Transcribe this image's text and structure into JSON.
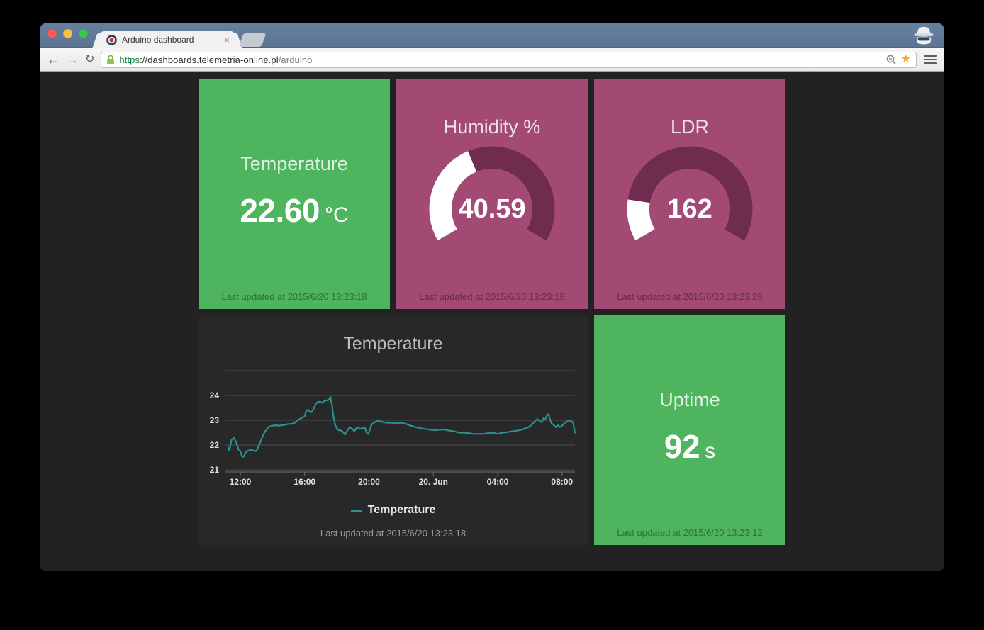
{
  "browser": {
    "tab_title": "Arduino dashboard",
    "tab_close": "×",
    "back": "←",
    "forward": "→",
    "reload": "↻",
    "url": {
      "scheme": "https",
      "host": "://dashboards.telemetria-online.pl",
      "path": "/arduino"
    }
  },
  "dashboard": {
    "colors": {
      "green": "#4eb45e",
      "purple": "#a24a74",
      "gauge_track": "#6f2c4e",
      "gauge_fill": "#ffffff",
      "chart_bg": "#282828"
    },
    "tiles": [
      {
        "type": "value",
        "title": "Temperature",
        "value": "22.60",
        "unit": "°C",
        "updated": "Last updated at 2015/6/20 13:23:18"
      },
      {
        "type": "gauge",
        "title": "Humidity %",
        "value": "40.59",
        "fraction": 0.4059,
        "updated": "Last updated at 2015/6/20 13:23:18"
      },
      {
        "type": "gauge",
        "title": "LDR",
        "value": "162",
        "fraction": 0.162,
        "updated": "Last updated at 2015/6/20 13:23:20"
      },
      {
        "type": "chart",
        "title": "Temperature",
        "updated": "Last updated at 2015/6/20 13:23:18"
      },
      {
        "type": "value",
        "title": "Uptime",
        "value": "92",
        "unit": "s",
        "updated": "Last updated at 2015/6/20 13:23:12"
      }
    ]
  },
  "chart_data": {
    "type": "line",
    "title": "Temperature",
    "legend": "Temperature",
    "legend_position": "bottom-center",
    "grid": true,
    "line_color": "#2b908f",
    "grid_color": "#4e4e52",
    "axis_color": "#707073",
    "label_color": "#e0e0e3",
    "ylim": [
      20.9,
      25
    ],
    "yticks": [
      21,
      22,
      23,
      24
    ],
    "ygrid": [
      21,
      22,
      23,
      24,
      25
    ],
    "xticks": [
      {
        "pos": 1,
        "label": "12:00"
      },
      {
        "pos": 5,
        "label": "16:00"
      },
      {
        "pos": 9,
        "label": "20:00"
      },
      {
        "pos": 13,
        "label": "20. Jun"
      },
      {
        "pos": 17,
        "label": "04:00"
      },
      {
        "pos": 21,
        "label": "08:00"
      }
    ],
    "x_unit": "time of day (pos = hours, 12:00 = 1)",
    "series": [
      {
        "name": "Temperature",
        "points": [
          [
            0.25,
            21.9
          ],
          [
            0.32,
            21.78
          ],
          [
            0.45,
            22.2
          ],
          [
            0.6,
            22.3
          ],
          [
            0.75,
            22.1
          ],
          [
            0.9,
            21.8
          ],
          [
            1.0,
            21.75
          ],
          [
            1.1,
            21.55
          ],
          [
            1.2,
            21.52
          ],
          [
            1.35,
            21.72
          ],
          [
            1.5,
            21.78
          ],
          [
            1.65,
            21.8
          ],
          [
            1.8,
            21.78
          ],
          [
            1.95,
            21.75
          ],
          [
            2.05,
            21.82
          ],
          [
            2.2,
            22.05
          ],
          [
            2.35,
            22.3
          ],
          [
            2.5,
            22.5
          ],
          [
            2.65,
            22.65
          ],
          [
            2.8,
            22.75
          ],
          [
            3.0,
            22.78
          ],
          [
            3.2,
            22.8
          ],
          [
            3.4,
            22.78
          ],
          [
            3.6,
            22.8
          ],
          [
            3.8,
            22.82
          ],
          [
            4.0,
            22.85
          ],
          [
            4.2,
            22.85
          ],
          [
            4.4,
            22.9
          ],
          [
            4.55,
            23.0
          ],
          [
            4.7,
            23.05
          ],
          [
            4.85,
            23.1
          ],
          [
            5.0,
            23.17
          ],
          [
            5.1,
            23.38
          ],
          [
            5.2,
            23.42
          ],
          [
            5.3,
            23.35
          ],
          [
            5.42,
            23.32
          ],
          [
            5.55,
            23.45
          ],
          [
            5.68,
            23.65
          ],
          [
            5.8,
            23.73
          ],
          [
            5.95,
            23.75
          ],
          [
            6.1,
            23.7
          ],
          [
            6.22,
            23.78
          ],
          [
            6.35,
            23.8
          ],
          [
            6.5,
            23.82
          ],
          [
            6.6,
            23.95
          ],
          [
            6.7,
            23.6
          ],
          [
            6.8,
            23.1
          ],
          [
            6.9,
            22.8
          ],
          [
            7.0,
            22.68
          ],
          [
            7.1,
            22.6
          ],
          [
            7.2,
            22.6
          ],
          [
            7.35,
            22.55
          ],
          [
            7.5,
            22.42
          ],
          [
            7.62,
            22.55
          ],
          [
            7.75,
            22.68
          ],
          [
            7.88,
            22.7
          ],
          [
            8.0,
            22.62
          ],
          [
            8.1,
            22.55
          ],
          [
            8.2,
            22.68
          ],
          [
            8.32,
            22.7
          ],
          [
            8.45,
            22.65
          ],
          [
            8.6,
            22.68
          ],
          [
            8.75,
            22.7
          ],
          [
            8.85,
            22.5
          ],
          [
            8.95,
            22.45
          ],
          [
            9.05,
            22.6
          ],
          [
            9.15,
            22.82
          ],
          [
            9.3,
            22.9
          ],
          [
            9.45,
            22.95
          ],
          [
            9.6,
            23.0
          ],
          [
            9.75,
            22.95
          ],
          [
            9.9,
            22.92
          ],
          [
            10.1,
            22.9
          ],
          [
            10.4,
            22.9
          ],
          [
            10.7,
            22.88
          ],
          [
            11.0,
            22.9
          ],
          [
            11.3,
            22.85
          ],
          [
            11.6,
            22.78
          ],
          [
            11.9,
            22.72
          ],
          [
            12.2,
            22.68
          ],
          [
            12.5,
            22.65
          ],
          [
            12.8,
            22.62
          ],
          [
            13.1,
            22.6
          ],
          [
            13.4,
            22.62
          ],
          [
            13.7,
            22.62
          ],
          [
            14.0,
            22.58
          ],
          [
            14.3,
            22.55
          ],
          [
            14.6,
            22.5
          ],
          [
            14.9,
            22.5
          ],
          [
            15.2,
            22.48
          ],
          [
            15.5,
            22.45
          ],
          [
            15.8,
            22.45
          ],
          [
            16.1,
            22.45
          ],
          [
            16.4,
            22.48
          ],
          [
            16.7,
            22.5
          ],
          [
            17.0,
            22.45
          ],
          [
            17.3,
            22.5
          ],
          [
            17.6,
            22.52
          ],
          [
            17.9,
            22.55
          ],
          [
            18.2,
            22.58
          ],
          [
            18.5,
            22.62
          ],
          [
            18.75,
            22.68
          ],
          [
            19.0,
            22.75
          ],
          [
            19.15,
            22.85
          ],
          [
            19.3,
            22.95
          ],
          [
            19.45,
            23.05
          ],
          [
            19.6,
            22.98
          ],
          [
            19.75,
            22.92
          ],
          [
            19.85,
            23.08
          ],
          [
            19.95,
            23.02
          ],
          [
            20.05,
            23.18
          ],
          [
            20.15,
            23.25
          ],
          [
            20.25,
            23.05
          ],
          [
            20.35,
            22.88
          ],
          [
            20.5,
            22.8
          ],
          [
            20.62,
            22.72
          ],
          [
            20.75,
            22.8
          ],
          [
            20.85,
            22.72
          ],
          [
            21.0,
            22.78
          ],
          [
            21.15,
            22.88
          ],
          [
            21.3,
            22.95
          ],
          [
            21.45,
            23.0
          ],
          [
            21.6,
            22.95
          ],
          [
            21.7,
            22.88
          ],
          [
            21.8,
            22.5
          ]
        ]
      }
    ]
  }
}
